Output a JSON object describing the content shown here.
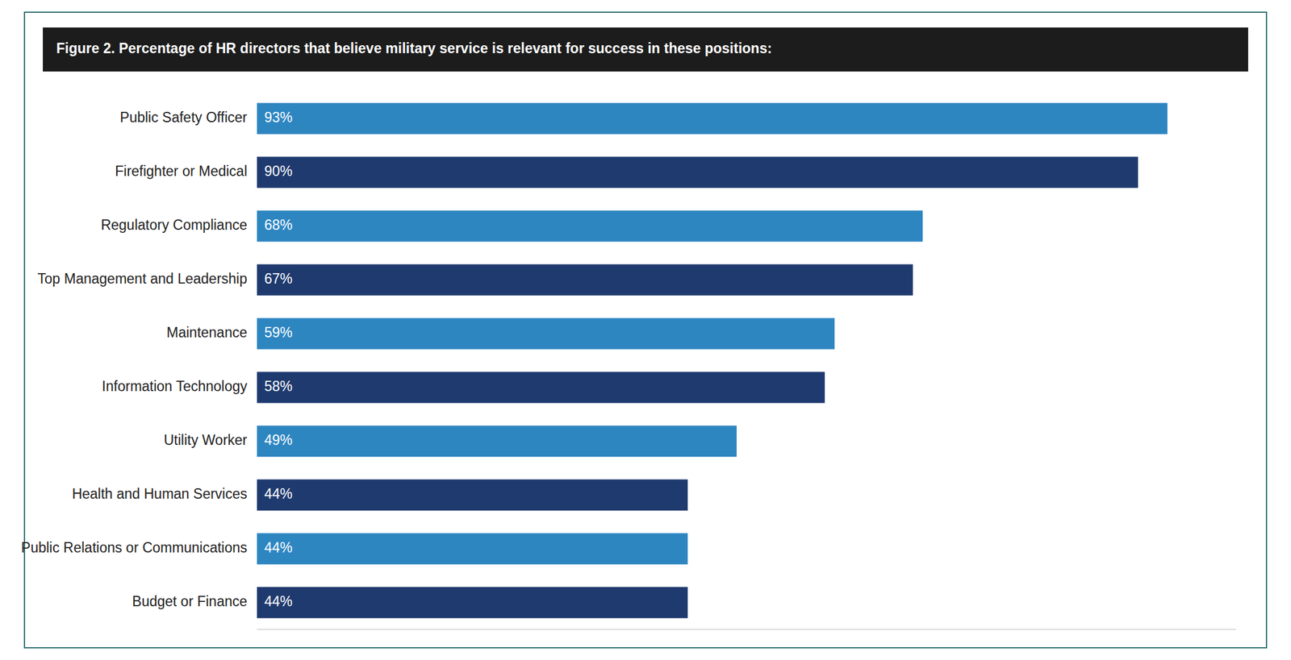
{
  "chart_data": {
    "type": "bar",
    "orientation": "horizontal",
    "title": "Figure 2. Percentage of HR directors that believe military service is relevant for success in these positions:",
    "categories": [
      "Budget or Finance",
      "Public Relations or Communications",
      "Health and Human Services",
      "Utility Worker",
      "Information Technology",
      "Maintenance",
      "Top Management and Leadership",
      "Regulatory Compliance",
      "Firefighter or Medical",
      "Public Safety Officer"
    ],
    "values": [
      44,
      44,
      44,
      49,
      58,
      59,
      67,
      68,
      90,
      93
    ],
    "value_labels": [
      "44%",
      "44%",
      "44%",
      "49%",
      "58%",
      "59%",
      "67%",
      "68%",
      "90%",
      "93%"
    ],
    "colors": [
      "#1f3a6e",
      "#2e86c1",
      "#1f3a6e",
      "#2e86c1",
      "#1f3a6e",
      "#2e86c1",
      "#1f3a6e",
      "#2e86c1",
      "#1f3a6e",
      "#2e86c1"
    ],
    "xlim": [
      0,
      100
    ],
    "data_labels": true,
    "tick_labels": "y",
    "grid": false
  }
}
